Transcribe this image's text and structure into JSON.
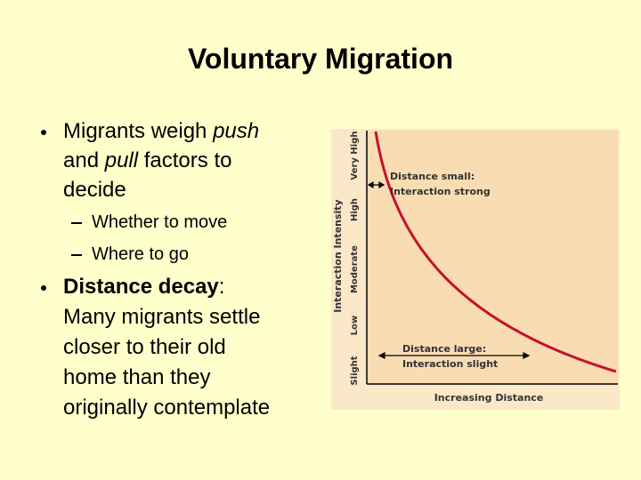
{
  "title": "Voluntary Migration",
  "bullets": [
    {
      "lines": [
        [
          {
            "text": "Migrants weigh "
          },
          {
            "text": "push",
            "style": "italic"
          }
        ],
        [
          {
            "text": "and "
          },
          {
            "text": "pull",
            "style": "italic"
          },
          {
            "text": " factors to"
          }
        ],
        [
          {
            "text": "decide"
          }
        ]
      ],
      "sub_bullets": [
        "Whether to move",
        "Where to go"
      ]
    },
    {
      "lines": [
        [
          {
            "text": "Distance decay",
            "style": "bold"
          },
          {
            "text": ":"
          }
        ],
        [
          {
            "text": "Many migrants settle"
          }
        ],
        [
          {
            "text": "closer to their old"
          }
        ],
        [
          {
            "text": "home than they"
          }
        ],
        [
          {
            "text": "originally contemplate"
          }
        ]
      ]
    }
  ],
  "diagram": {
    "y_axis_title": "Interaction Intensity",
    "y_levels": [
      "Slight",
      "Low",
      "Moderate",
      "High",
      "Very High"
    ],
    "x_axis_title": "Increasing Distance",
    "annotations": [
      {
        "lines": [
          "Distance small:",
          "Interaction strong"
        ]
      },
      {
        "lines": [
          "Distance large:",
          "Interaction slight"
        ]
      }
    ]
  }
}
